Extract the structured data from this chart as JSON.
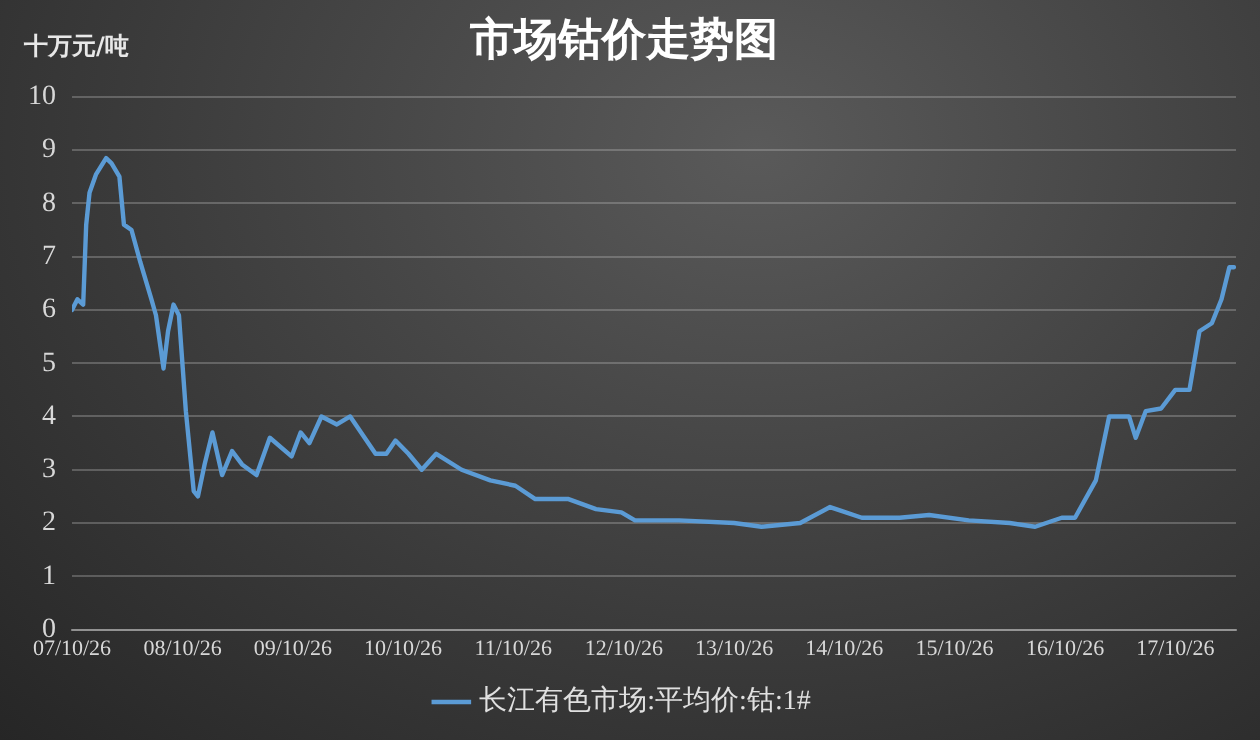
{
  "chart_data": {
    "type": "line",
    "title": "市场钴价走势图",
    "ylabel": "十万元/吨",
    "x": [
      "2007-10-26",
      "2007-11-13",
      "2007-12-02",
      "2007-12-12",
      "2007-12-23",
      "2008-01-14",
      "2008-02-16",
      "2008-03-05",
      "2008-03-31",
      "2008-04-15",
      "2008-05-10",
      "2008-06-08",
      "2008-07-15",
      "2008-07-30",
      "2008-08-24",
      "2008-09-08",
      "2008-09-26",
      "2008-10-14",
      "2008-11-06",
      "2008-12-02",
      "2008-12-16",
      "2009-01-07",
      "2009-02-02",
      "2009-03-06",
      "2009-04-08",
      "2009-05-11",
      "2009-06-28",
      "2009-08-11",
      "2009-10-22",
      "2009-11-21",
      "2009-12-20",
      "2010-01-29",
      "2010-03-21",
      "2010-05-04",
      "2010-07-27",
      "2010-09-01",
      "2010-10-01",
      "2010-11-13",
      "2010-12-27",
      "2011-02-13",
      "2011-05-08",
      "2011-08-11",
      "2011-11-02",
      "2012-01-07",
      "2012-04-26",
      "2012-07-26",
      "2012-10-18",
      "2012-12-02",
      "2013-04-27",
      "2013-10-26",
      "2014-01-25",
      "2014-06-02",
      "2014-09-09",
      "2014-12-23",
      "2015-04-27",
      "2015-08-03",
      "2015-12-12",
      "2016-04-26",
      "2016-07-19",
      "2016-10-15",
      "2016-11-28",
      "2017-02-05",
      "2017-03-21",
      "2017-05-26",
      "2017-06-17",
      "2017-07-20",
      "2017-09-09",
      "2017-10-26",
      "2017-12-12",
      "2018-01-14",
      "2018-02-24",
      "2018-03-28",
      "2018-04-23",
      "2018-05-08"
    ],
    "series": [
      {
        "name": "长江有色市场:平均价:钴:1#",
        "color": "#5b9bd5",
        "values": [
          6.0,
          6.2,
          6.1,
          7.6,
          8.2,
          8.55,
          8.85,
          8.75,
          8.5,
          7.6,
          7.5,
          6.9,
          6.2,
          5.9,
          4.9,
          5.6,
          6.1,
          5.9,
          4.1,
          2.6,
          2.5,
          3.1,
          3.7,
          2.9,
          3.35,
          3.1,
          2.9,
          3.6,
          3.25,
          3.7,
          3.5,
          4.0,
          3.85,
          4.0,
          3.3,
          3.3,
          3.55,
          3.3,
          3.0,
          3.3,
          3.0,
          2.8,
          2.7,
          2.45,
          2.45,
          2.26,
          2.2,
          2.05,
          2.05,
          2.0,
          1.93,
          2.0,
          2.3,
          2.1,
          2.1,
          2.15,
          2.05,
          2.0,
          1.93,
          2.1,
          2.1,
          2.8,
          4.0,
          4.0,
          3.6,
          4.1,
          4.15,
          4.5,
          4.5,
          5.6,
          5.75,
          6.2,
          6.8,
          6.8
        ]
      }
    ],
    "xlim": [
      "2007-10-26",
      "2018-05-15"
    ],
    "xticks": [
      {
        "value": "2007-10-26",
        "label": "07/10/26"
      },
      {
        "value": "2008-10-26",
        "label": "08/10/26"
      },
      {
        "value": "2009-10-26",
        "label": "09/10/26"
      },
      {
        "value": "2010-10-26",
        "label": "10/10/26"
      },
      {
        "value": "2011-10-26",
        "label": "11/10/26"
      },
      {
        "value": "2012-10-26",
        "label": "12/10/26"
      },
      {
        "value": "2013-10-26",
        "label": "13/10/26"
      },
      {
        "value": "2014-10-26",
        "label": "14/10/26"
      },
      {
        "value": "2015-10-26",
        "label": "15/10/26"
      },
      {
        "value": "2016-10-26",
        "label": "16/10/26"
      },
      {
        "value": "2017-10-26",
        "label": "17/10/26"
      }
    ],
    "ylim": [
      0,
      10
    ],
    "yticks": [
      0,
      1,
      2,
      3,
      4,
      5,
      6,
      7,
      8,
      9,
      10
    ],
    "grid": "y",
    "legend": "bottom",
    "marker": "none",
    "line_style": "solid"
  }
}
